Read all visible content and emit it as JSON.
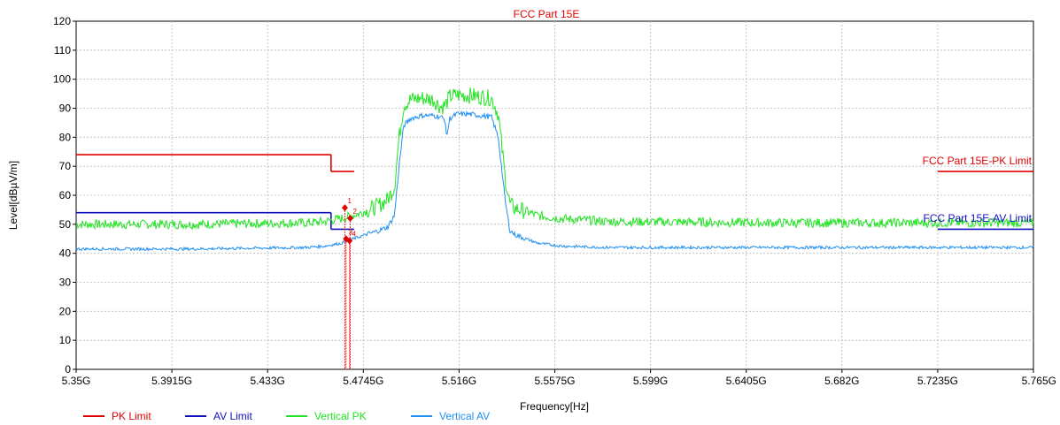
{
  "chart_data": {
    "type": "line",
    "title": "FCC Part 15E",
    "xlabel": "Frequency[Hz]",
    "ylabel": "Level[dBµV/m]",
    "xlim": [
      5.35,
      5.765
    ],
    "ylim": [
      0,
      120
    ],
    "x_unit": "GHz",
    "grid": true,
    "legend_position": "bottom-left",
    "x_ticks": [
      5.35,
      5.3915,
      5.433,
      5.4745,
      5.516,
      5.5575,
      5.599,
      5.6405,
      5.682,
      5.7235,
      5.765
    ],
    "x_tick_labels": [
      "5.35G",
      "5.3915G",
      "5.433G",
      "5.4745G",
      "5.516G",
      "5.5575G",
      "5.599G",
      "5.6405G",
      "5.682G",
      "5.7235G",
      "5.765G"
    ],
    "y_ticks": [
      0,
      10,
      20,
      30,
      40,
      50,
      60,
      70,
      80,
      90,
      100,
      110,
      120
    ],
    "y_tick_labels": [
      "0",
      "10",
      "20",
      "30",
      "40",
      "50",
      "60",
      "70",
      "80",
      "90",
      "100",
      "110",
      "120"
    ],
    "limit_lines": [
      {
        "label": "FCC Part 15E-PK Limit",
        "color": "#e00000",
        "segments": [
          {
            "x": [
              5.35,
              5.4605
            ],
            "y": [
              74,
              74
            ]
          },
          {
            "x": [
              5.4605,
              5.4605
            ],
            "y": [
              74,
              68.2
            ]
          },
          {
            "x": [
              5.4605,
              5.4705
            ],
            "y": [
              68.2,
              68.2
            ]
          },
          {
            "x": [
              5.7235,
              5.765
            ],
            "y": [
              68.2,
              68.2
            ]
          }
        ]
      },
      {
        "label": "FCC Part 15E-AV Limit",
        "color": "#1010c0",
        "segments": [
          {
            "x": [
              5.35,
              5.4605
            ],
            "y": [
              54,
              54
            ]
          },
          {
            "x": [
              5.4605,
              5.4605
            ],
            "y": [
              54,
              48.3
            ]
          },
          {
            "x": [
              5.4605,
              5.4705
            ],
            "y": [
              48.3,
              48.3
            ]
          },
          {
            "x": [
              5.7235,
              5.765
            ],
            "y": [
              48.3,
              48.3
            ]
          }
        ]
      }
    ],
    "series": [
      {
        "name": "Vertical PK",
        "color": "#22e322",
        "x": [
          5.35,
          5.4,
          5.45,
          5.458,
          5.465,
          5.472,
          5.48,
          5.485,
          5.488,
          5.49,
          5.492,
          5.495,
          5.5,
          5.505,
          5.508,
          5.51,
          5.512,
          5.515,
          5.52,
          5.525,
          5.53,
          5.533,
          5.536,
          5.538,
          5.54,
          5.545,
          5.55,
          5.56,
          5.58,
          5.65,
          5.7,
          5.765
        ],
        "y": [
          50,
          50,
          50.5,
          51,
          52,
          53.5,
          56,
          58.5,
          63,
          80,
          91,
          93,
          93.5,
          93,
          90.5,
          91,
          94,
          94.5,
          94.5,
          94,
          93.5,
          88,
          66,
          57,
          55.5,
          54.5,
          53,
          52,
          51,
          50.5,
          50.5,
          50.5
        ]
      },
      {
        "name": "Vertical AV",
        "color": "#1e8ff0",
        "x": [
          5.35,
          5.4,
          5.45,
          5.458,
          5.465,
          5.472,
          5.48,
          5.485,
          5.488,
          5.49,
          5.492,
          5.495,
          5.5,
          5.505,
          5.508,
          5.51,
          5.5105,
          5.512,
          5.515,
          5.52,
          5.525,
          5.53,
          5.533,
          5.536,
          5.538,
          5.54,
          5.545,
          5.55,
          5.56,
          5.58,
          5.65,
          5.7,
          5.765
        ],
        "y": [
          41.5,
          41.5,
          42,
          42.5,
          43.5,
          45.5,
          47.5,
          49,
          53,
          70,
          84,
          86.5,
          87.5,
          87.5,
          87,
          86,
          80,
          86.5,
          88,
          88,
          87.5,
          87,
          80,
          58,
          48,
          46.5,
          45,
          43.5,
          42.5,
          42,
          42,
          42,
          42
        ]
      }
    ],
    "markers": [
      {
        "label": "1",
        "x": 5.4665,
        "y": 55.7
      },
      {
        "label": "2",
        "x": 5.4688,
        "y": 52.1
      },
      {
        "label": "3",
        "x": 5.467,
        "y": 45.0
      },
      {
        "label": "4",
        "x": 5.4685,
        "y": 44.3
      }
    ],
    "legend": [
      {
        "name": "PK Limit",
        "color": "#e00000"
      },
      {
        "name": "AV Limit",
        "color": "#1010c0"
      },
      {
        "name": "Vertical PK",
        "color": "#22e322"
      },
      {
        "name": "Vertical AV",
        "color": "#1e8ff0"
      }
    ]
  }
}
